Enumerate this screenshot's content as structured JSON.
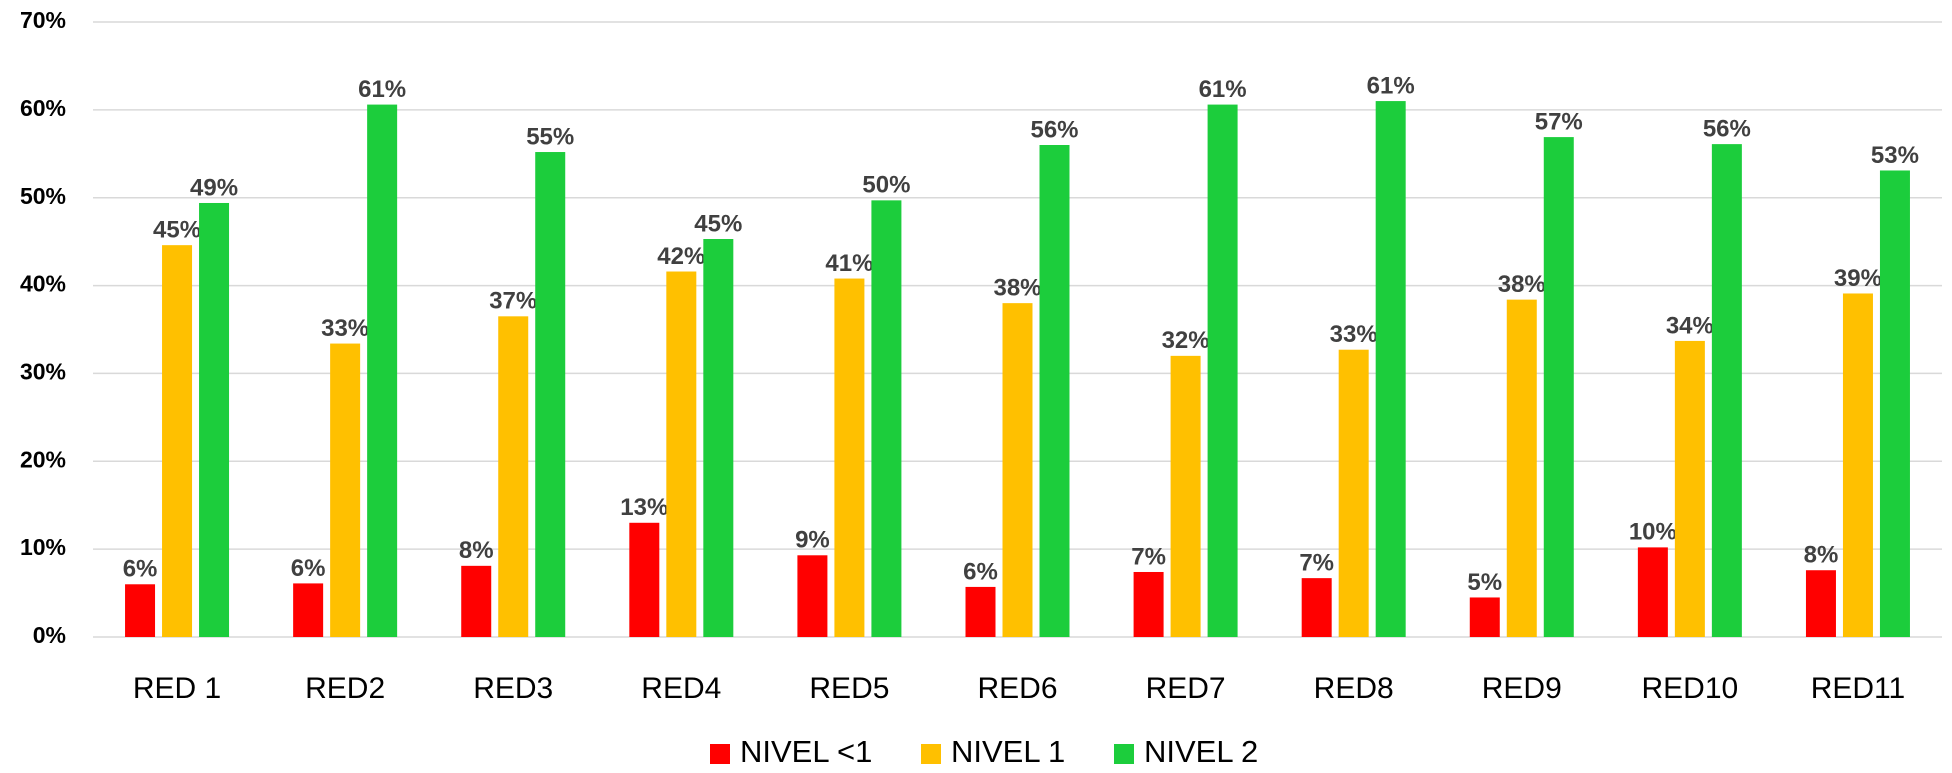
{
  "chart_data": {
    "type": "bar",
    "categories": [
      "RED 1",
      "RED2",
      "RED3",
      "RED4",
      "RED5",
      "RED6",
      "RED7",
      "RED8",
      "RED9",
      "RED10",
      "RED11"
    ],
    "series": [
      {
        "name": "NIVEL <1",
        "color": "#ff0000",
        "values": [
          6.0,
          6.1,
          8.1,
          13.0,
          9.3,
          5.7,
          7.4,
          6.7,
          4.5,
          10.2,
          7.6
        ],
        "value_labels": [
          "6%",
          "6%",
          "8%",
          "13%",
          "9%",
          "6%",
          "7%",
          "7%",
          "5%",
          "10%",
          "8%"
        ]
      },
      {
        "name": "NIVEL 1",
        "color": "#ffc000",
        "values": [
          44.6,
          33.4,
          36.5,
          41.6,
          40.8,
          38.0,
          32.0,
          32.7,
          38.4,
          33.7,
          39.1
        ],
        "value_labels": [
          "45%",
          "33%",
          "37%",
          "42%",
          "41%",
          "38%",
          "32%",
          "33%",
          "38%",
          "34%",
          "39%"
        ]
      },
      {
        "name": "NIVEL 2",
        "color": "#1ccd3c",
        "values": [
          49.4,
          60.6,
          55.2,
          45.3,
          49.7,
          56.0,
          60.6,
          61.0,
          56.9,
          56.1,
          53.1
        ],
        "value_labels": [
          "49%",
          "61%",
          "55%",
          "45%",
          "50%",
          "56%",
          "61%",
          "61%",
          "57%",
          "56%",
          "53%"
        ]
      }
    ],
    "ylim": [
      0,
      70
    ],
    "yticks": [
      {
        "value": 0,
        "label": "0%"
      },
      {
        "value": 10,
        "label": "10%"
      },
      {
        "value": 20,
        "label": "20%"
      },
      {
        "value": 30,
        "label": "30%"
      },
      {
        "value": 40,
        "label": "40%"
      },
      {
        "value": 50,
        "label": "50%"
      },
      {
        "value": 60,
        "label": "60%"
      },
      {
        "value": 70,
        "label": "70%"
      }
    ],
    "grid": true,
    "legend": "bottom"
  }
}
